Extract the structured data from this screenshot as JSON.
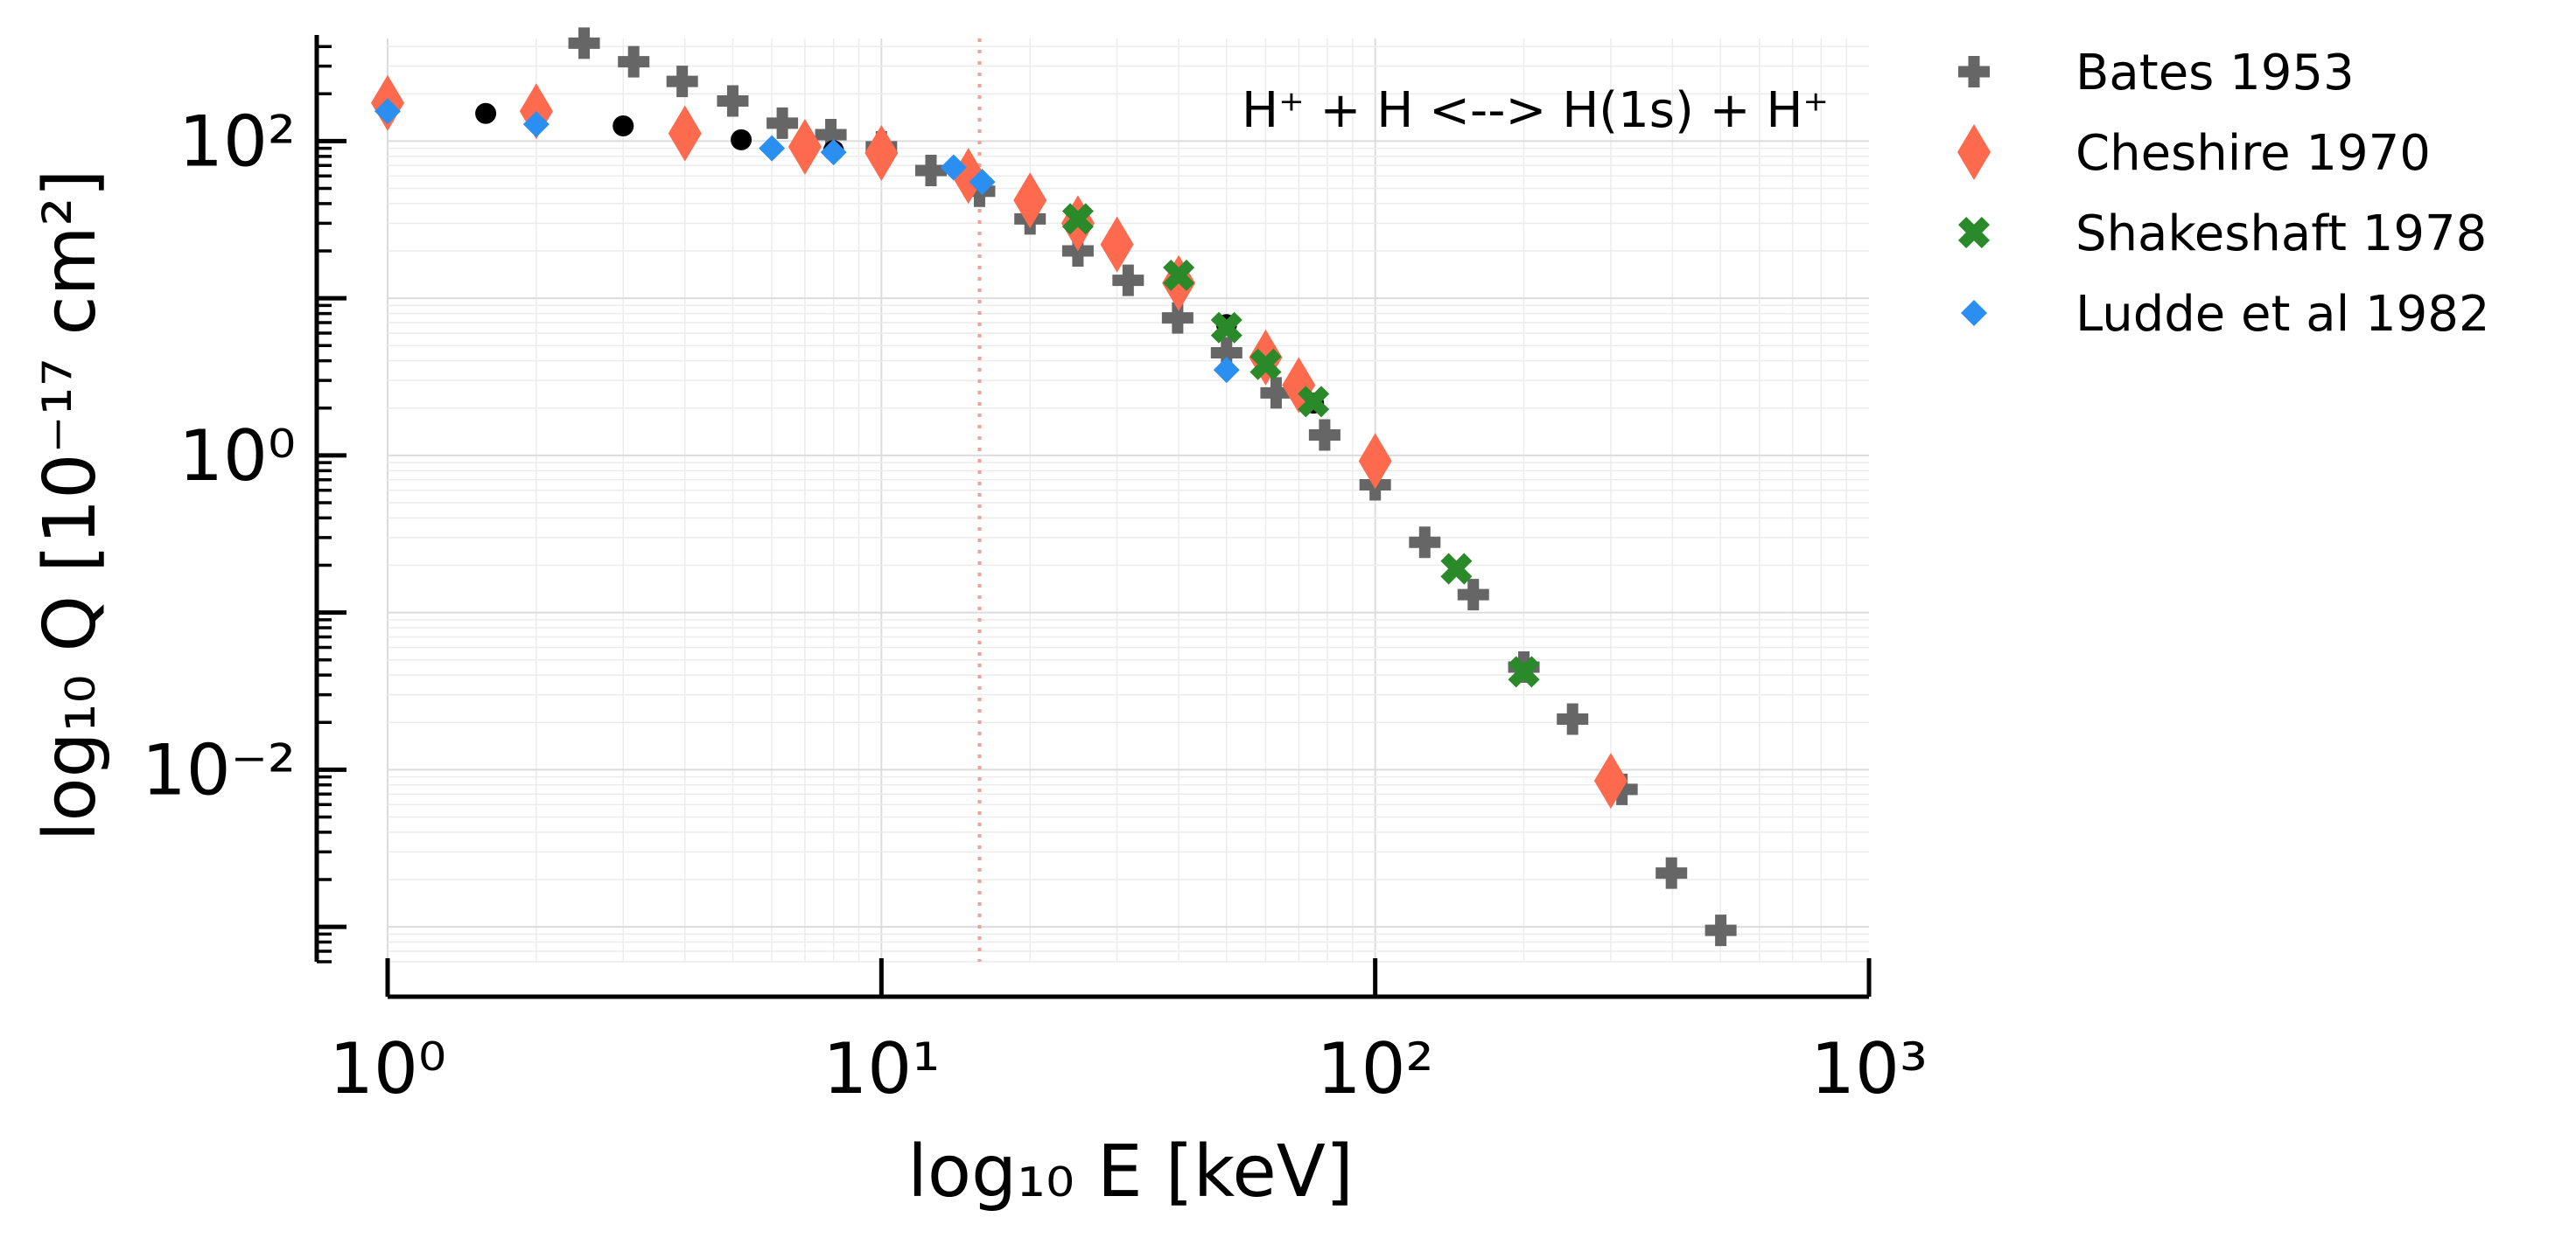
{
  "chart_data": {
    "type": "scatter",
    "title": "",
    "annotation": "H⁺ + H <--> H(1s) + H⁺",
    "xlabel": "log₁₀ E [keV]",
    "ylabel": "log₁₀ Q [10⁻¹⁷ cm²]",
    "x_scale": "log",
    "y_scale": "log",
    "xlim": [
      1,
      1000
    ],
    "ylim": [
      0.0006,
      450
    ],
    "x_ticks": [
      {
        "value": 1,
        "label": "10⁰"
      },
      {
        "value": 10,
        "label": "10¹"
      },
      {
        "value": 100,
        "label": "10²"
      },
      {
        "value": 1000,
        "label": "10³"
      }
    ],
    "y_ticks": [
      {
        "value": 100,
        "label": "10²"
      },
      {
        "value": 1,
        "label": "10⁰"
      },
      {
        "value": 0.01,
        "label": "10⁻²"
      }
    ],
    "grid": true,
    "vertical_line": {
      "x": 15.8,
      "style": "dotted",
      "color": "#f4a093"
    },
    "legend_position": "outside-right",
    "series": [
      {
        "name": "Bates 1953",
        "marker": "plus",
        "color": "#666666",
        "points": [
          [
            2.5,
            420
          ],
          [
            3.15,
            320
          ],
          [
            3.95,
            240
          ],
          [
            5.0,
            180
          ],
          [
            6.3,
            130
          ],
          [
            7.9,
            110
          ],
          [
            10,
            92
          ],
          [
            12.6,
            65
          ],
          [
            15.8,
            48
          ],
          [
            20,
            32
          ],
          [
            25,
            20
          ],
          [
            31.6,
            13
          ],
          [
            39.8,
            7.5
          ],
          [
            50,
            4.5
          ],
          [
            63,
            2.5
          ],
          [
            79,
            1.35
          ],
          [
            100,
            0.65
          ],
          [
            126,
            0.28
          ],
          [
            158,
            0.13
          ],
          [
            200,
            0.045
          ],
          [
            251,
            0.021
          ],
          [
            316,
            0.0075
          ],
          [
            398,
            0.0022
          ],
          [
            501,
            0.00095
          ]
        ]
      },
      {
        "name": "",
        "marker": "circle",
        "color": "#000000",
        "points": [
          [
            1.58,
            150
          ],
          [
            3.0,
            125
          ],
          [
            5.2,
            102
          ],
          [
            8.0,
            87
          ],
          [
            50,
            6.8
          ],
          [
            75,
            2.15
          ]
        ]
      },
      {
        "name": "Cheshire 1970",
        "marker": "diamond",
        "color": "#fe6a4e",
        "points": [
          [
            1,
            175
          ],
          [
            2,
            155
          ],
          [
            4,
            112
          ],
          [
            7,
            92
          ],
          [
            10,
            84
          ],
          [
            15,
            60
          ],
          [
            20,
            42
          ],
          [
            25,
            30
          ],
          [
            30,
            22
          ],
          [
            40,
            12.5
          ],
          [
            60,
            4.2
          ],
          [
            70,
            2.8
          ],
          [
            100,
            0.92
          ],
          [
            300,
            0.0085
          ]
        ]
      },
      {
        "name": "Shakeshaft 1978",
        "marker": "x",
        "color": "#2a8a2a",
        "points": [
          [
            25,
            32
          ],
          [
            40,
            14
          ],
          [
            50,
            6.5
          ],
          [
            60,
            3.8
          ],
          [
            75,
            2.2
          ],
          [
            146,
            0.19
          ],
          [
            200,
            0.042
          ]
        ]
      },
      {
        "name": "Ludde et al 1982",
        "marker": "small-diamond",
        "color": "#2a8ff0",
        "points": [
          [
            1,
            155
          ],
          [
            2,
            128
          ],
          [
            6,
            90
          ],
          [
            8,
            85
          ],
          [
            14,
            68
          ],
          [
            16,
            55
          ],
          [
            50,
            3.5
          ]
        ]
      }
    ]
  }
}
